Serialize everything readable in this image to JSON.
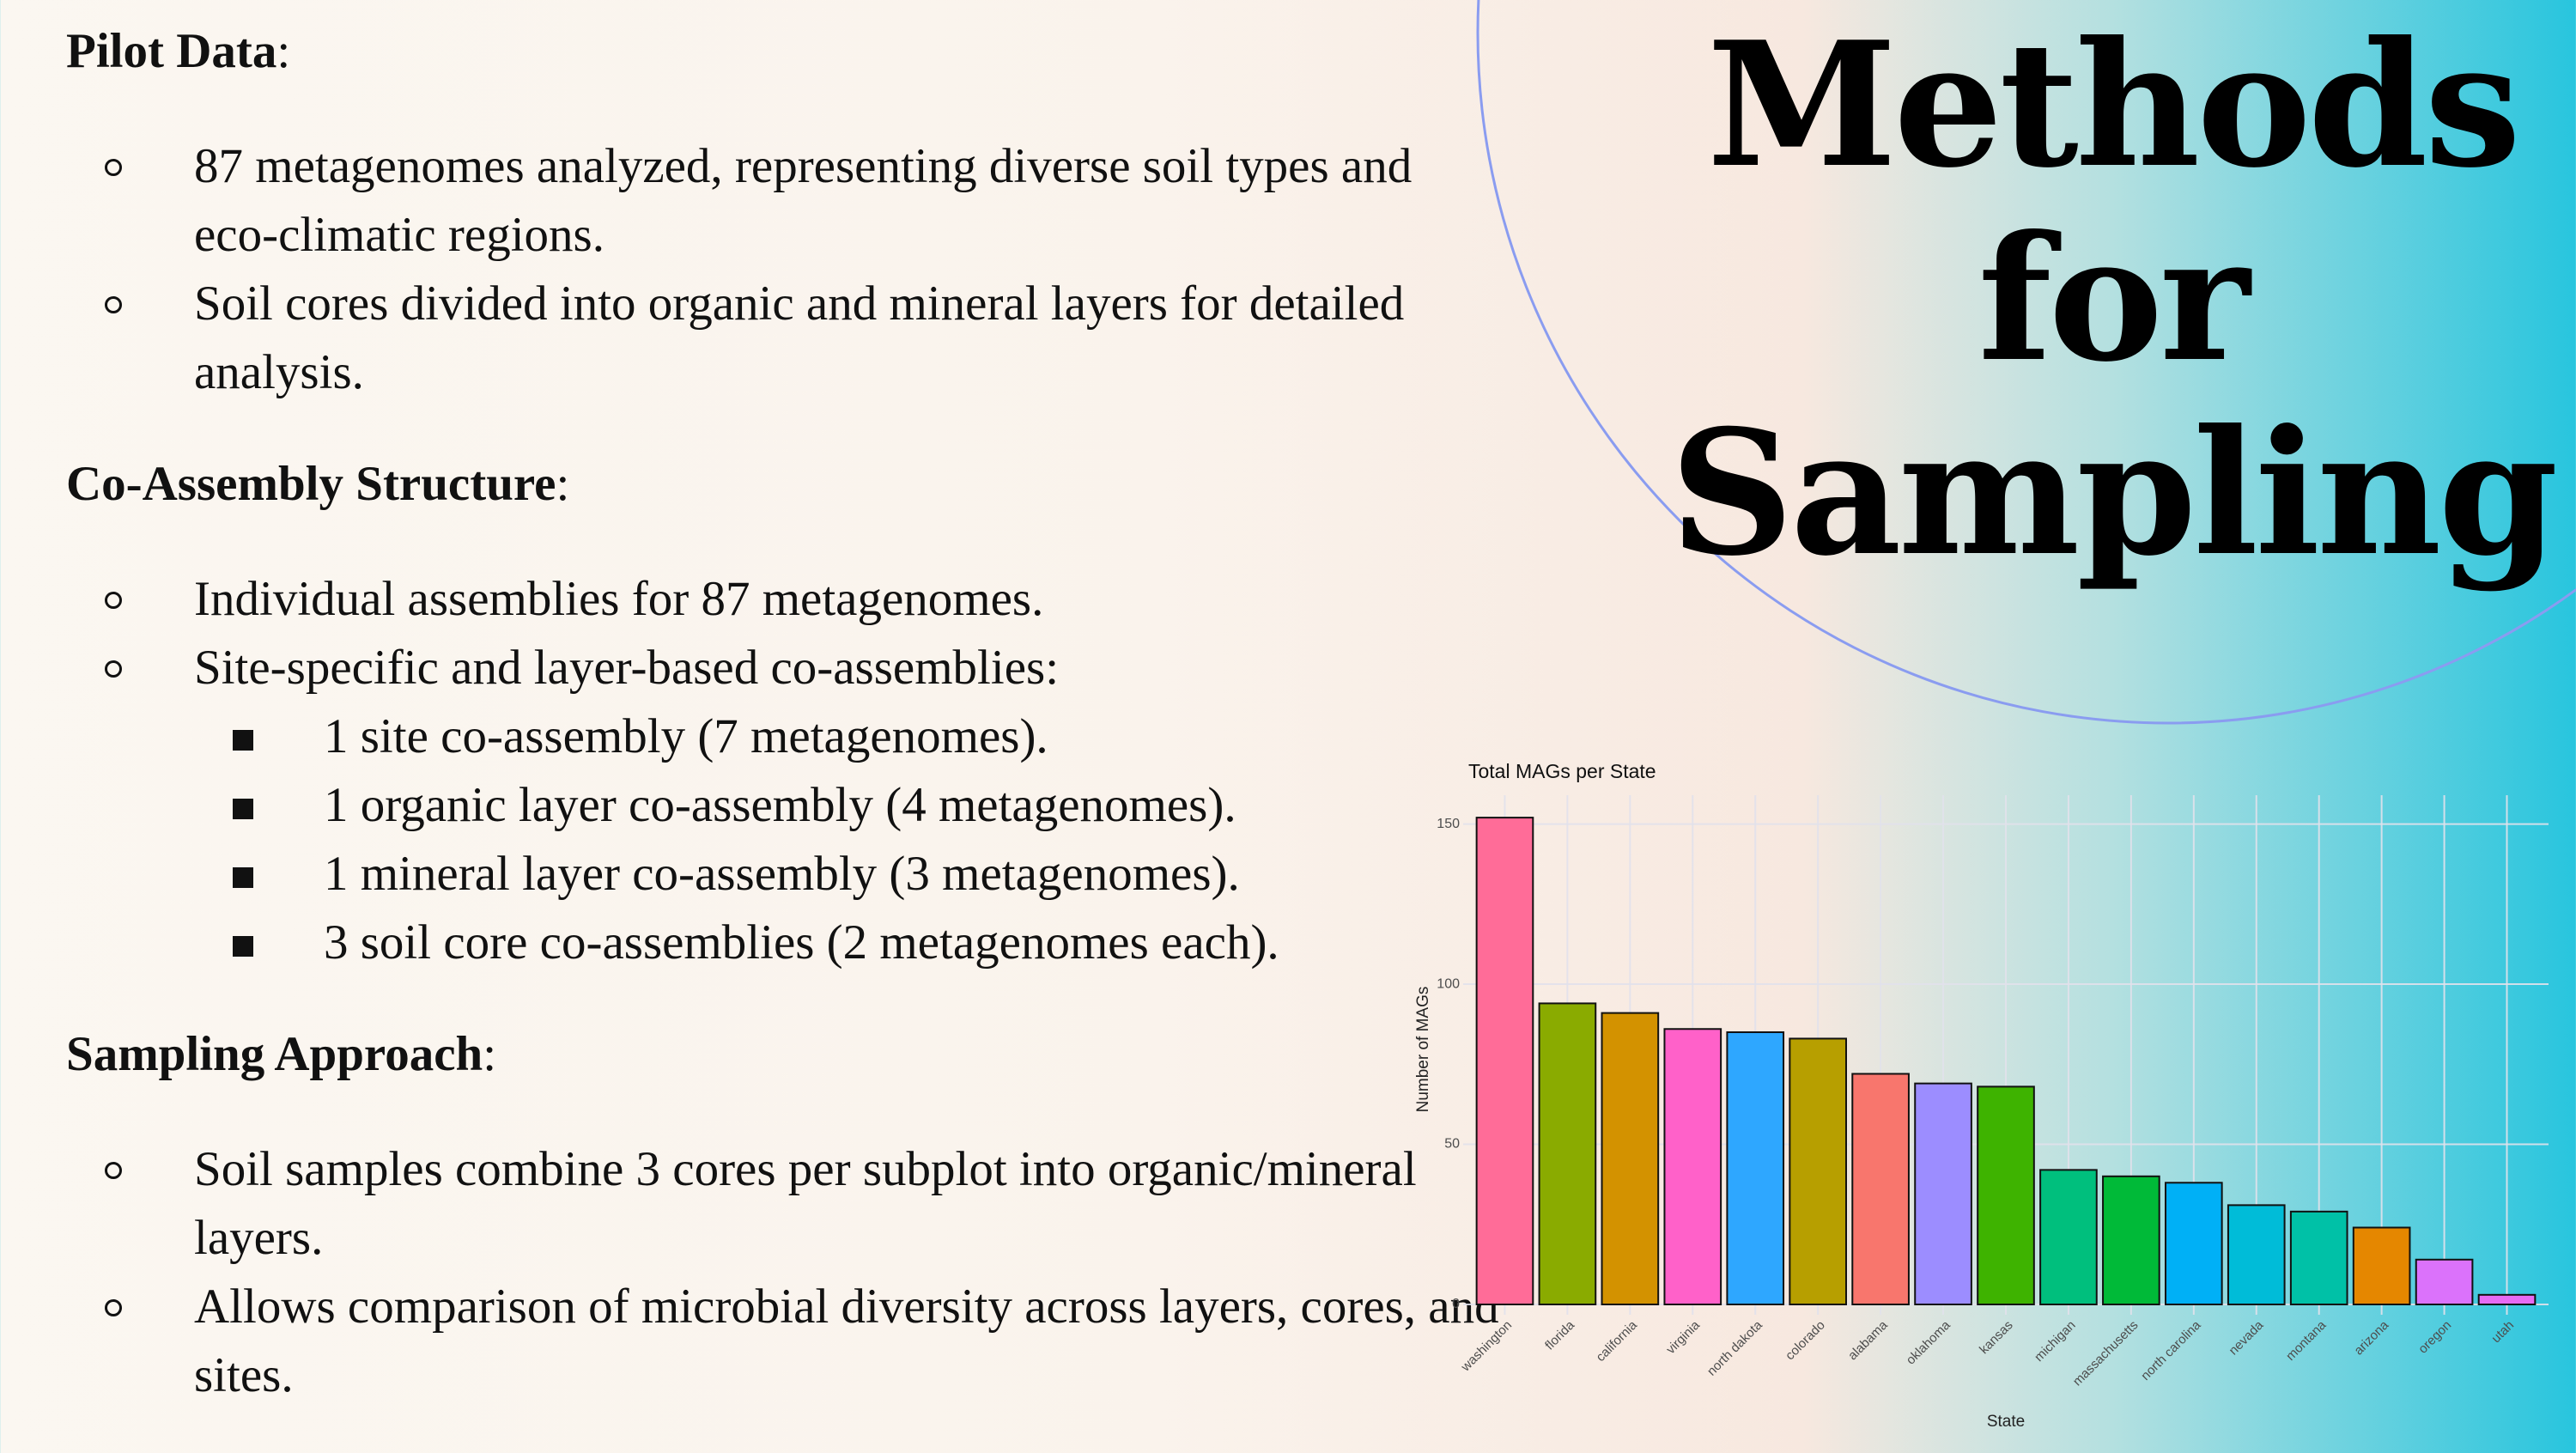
{
  "title_lines": [
    "Methods",
    "for",
    "Sampling"
  ],
  "sections": [
    {
      "heading": "Pilot Data",
      "suffix": ":",
      "items": [
        {
          "text": "87 metagenomes analyzed, representing diverse soil types and eco-climatic regions."
        },
        {
          "text": "Soil cores divided into organic and mineral layers for detailed analysis."
        }
      ]
    },
    {
      "heading": "Co-Assembly Structure",
      "suffix": ":",
      "items": [
        {
          "text": "Individual assemblies for 87 metagenomes."
        },
        {
          "text": "Site-specific and layer-based co-assemblies:",
          "subitems": [
            "1 site co-assembly (7 metagenomes).",
            "1 organic layer co-assembly (4 metagenomes).",
            "1 mineral layer co-assembly (3 metagenomes).",
            "3 soil core co-assemblies (2 metagenomes each)."
          ]
        }
      ]
    },
    {
      "heading": "Sampling Approach",
      "suffix": ":",
      "items": [
        {
          "text": "Soil samples combine 3 cores per subplot into organic/mineral layers."
        },
        {
          "text": "Allows comparison of microbial diversity across layers, cores, and sites."
        }
      ]
    }
  ],
  "chart_data": {
    "type": "bar",
    "title": "Total MAGs per State",
    "x_label": "State",
    "y_label": "Number of MAGs",
    "categories": [
      "washington",
      "florida",
      "california",
      "virginia",
      "north dakota",
      "colorado",
      "alabama",
      "oklahoma",
      "kansas",
      "michigan",
      "massachusetts",
      "north carolina",
      "nevada",
      "montana",
      "arizona",
      "oregon",
      "utah"
    ],
    "values": [
      152,
      94,
      91,
      86,
      85,
      83,
      72,
      69,
      68,
      42,
      40,
      38,
      31,
      29,
      24,
      14,
      3
    ],
    "colors": [
      "#FF6C98",
      "#8AAB00",
      "#D39200",
      "#FF61C9",
      "#2EA7FF",
      "#B79F00",
      "#F8766D",
      "#9C8DFF",
      "#3EB300",
      "#00BF7D",
      "#00BA38",
      "#00B0F6",
      "#00BCD8",
      "#00C1A7",
      "#E58700",
      "#DB72FB",
      "#E76BF3"
    ],
    "ylim": [
      0,
      159
    ],
    "yticks": [
      0,
      50,
      100,
      150
    ],
    "grid": true
  }
}
